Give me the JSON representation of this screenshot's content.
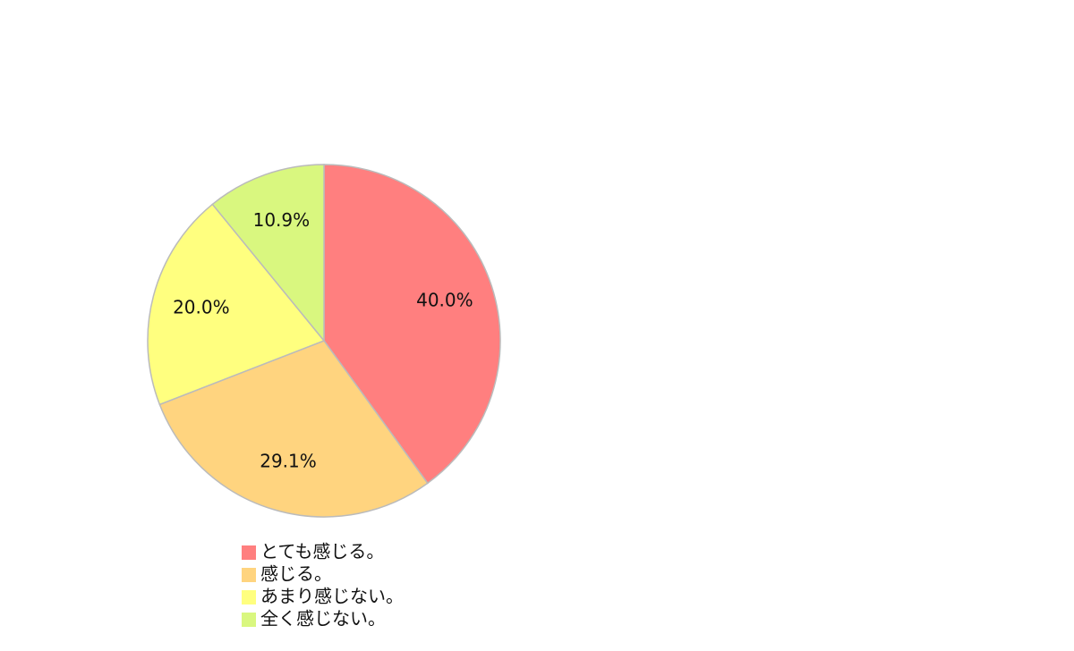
{
  "chart_data": {
    "type": "pie",
    "categories": [
      "とても感じる。",
      "感じる。",
      "あまり感じない。",
      "全く感じない。"
    ],
    "values": [
      40.0,
      29.1,
      20.0,
      10.9
    ],
    "value_labels": [
      "40.0%",
      "29.1%",
      "20.0%",
      "10.9%"
    ],
    "colors": [
      "#ff7f7f",
      "#ffd47f",
      "#ffff7f",
      "#d9f77f"
    ]
  }
}
